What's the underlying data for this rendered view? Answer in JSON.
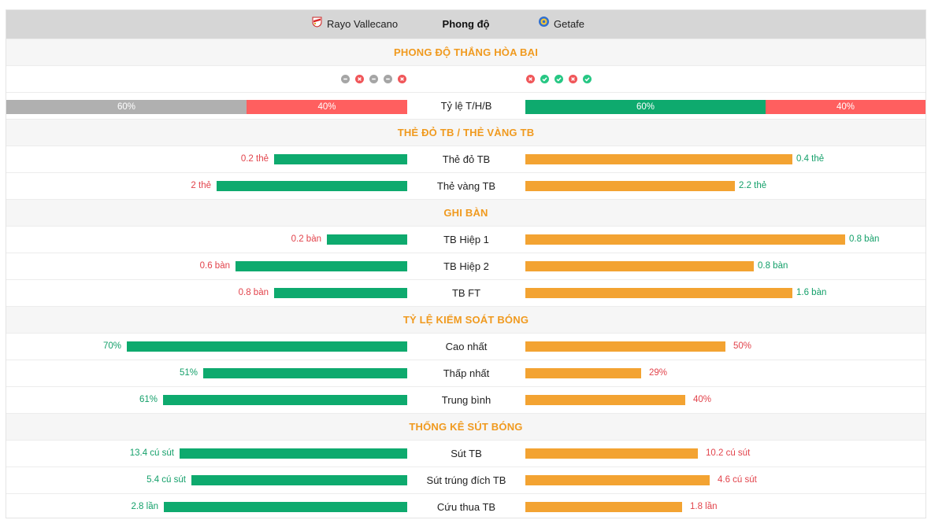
{
  "header": {
    "home_team": "Rayo Vallecano",
    "title": "Phong độ",
    "away_team": "Getafe"
  },
  "form": {
    "section_title": "PHONG ĐỘ THẮNG HÒA BẠI",
    "home": [
      "draw",
      "loss",
      "draw",
      "draw",
      "loss"
    ],
    "away": [
      "loss",
      "win",
      "win",
      "loss",
      "win"
    ]
  },
  "ratio": {
    "label": "Tỷ lệ T/H/B",
    "home": [
      {
        "text": "60%",
        "value": 60,
        "color": "#b0b0b0"
      },
      {
        "text": "40%",
        "value": 40,
        "color": "#ff5f5f"
      }
    ],
    "away": [
      {
        "text": "60%",
        "value": 60,
        "color": "#0eaa6e"
      },
      {
        "text": "40%",
        "value": 40,
        "color": "#ff5f5f"
      }
    ]
  },
  "cards": {
    "section_title": "THẺ ĐỎ TB / THẺ VÀNG TB",
    "rows": [
      {
        "label": "Thẻ đỏ TB",
        "home": "0.2 thẻ",
        "away": "0.4 thẻ",
        "home_ratio": 0.333,
        "away_ratio": 0.667,
        "home_color": "red",
        "away_color": "grn"
      },
      {
        "label": "Thẻ vàng TB",
        "home": "2 thẻ",
        "away": "2.2 thẻ",
        "home_ratio": 0.476,
        "away_ratio": 0.524,
        "home_color": "red",
        "away_color": "grn"
      }
    ]
  },
  "goals": {
    "section_title": "GHI BÀN",
    "rows": [
      {
        "label": "TB Hiệp 1",
        "home": "0.2 bàn",
        "away": "0.8 bàn",
        "home_ratio": 0.2,
        "away_ratio": 0.8,
        "home_color": "red",
        "away_color": "grn"
      },
      {
        "label": "TB Hiệp 2",
        "home": "0.6 bàn",
        "away": "0.8 bàn",
        "home_ratio": 0.429,
        "away_ratio": 0.571,
        "home_color": "red",
        "away_color": "grn"
      },
      {
        "label": "TB FT",
        "home": "0.8 bàn",
        "away": "1.6 bàn",
        "home_ratio": 0.333,
        "away_ratio": 0.667,
        "home_color": "red",
        "away_color": "grn"
      }
    ]
  },
  "possession": {
    "section_title": "TỶ LỆ KIỂM SOÁT BÓNG",
    "rows": [
      {
        "label": "Cao nhất",
        "home": "70%",
        "away": "50%",
        "home_ratio": 0.7,
        "away_ratio": 0.5,
        "home_color": "grn",
        "away_color": "red"
      },
      {
        "label": "Thấp nhất",
        "home": "51%",
        "away": "29%",
        "home_ratio": 0.51,
        "away_ratio": 0.29,
        "home_color": "grn",
        "away_color": "red"
      },
      {
        "label": "Trung bình",
        "home": "61%",
        "away": "40%",
        "home_ratio": 0.61,
        "away_ratio": 0.4,
        "home_color": "grn",
        "away_color": "red"
      }
    ]
  },
  "shots": {
    "section_title": "THỐNG KÊ SÚT BÓNG",
    "rows": [
      {
        "label": "Sút TB",
        "home": "13.4 cú sút",
        "away": "10.2 cú sút",
        "home_ratio": 0.568,
        "away_ratio": 0.432,
        "home_color": "grn",
        "away_color": "red"
      },
      {
        "label": "Sút trúng đích TB",
        "home": "5.4 cú sút",
        "away": "4.6 cú sút",
        "home_ratio": 0.54,
        "away_ratio": 0.46,
        "home_color": "grn",
        "away_color": "red"
      },
      {
        "label": "Cứu thua TB",
        "home": "2.8 lần",
        "away": "1.8 lần",
        "home_ratio": 0.609,
        "away_ratio": 0.391,
        "home_color": "grn",
        "away_color": "red"
      }
    ]
  },
  "colors": {
    "green": "#0eaa6e",
    "orange": "#f3a332",
    "red": "#e2434b",
    "section": "#f09a1f"
  }
}
